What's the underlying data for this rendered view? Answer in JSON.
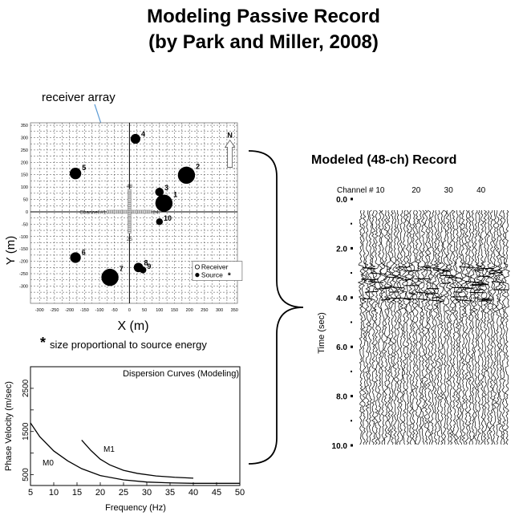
{
  "header": {
    "title_line1": "Modeling Passive Record",
    "title_line2": "(by Park and Miller, 2008)"
  },
  "map": {
    "annotation": "receiver array",
    "xlabel": "X (m)",
    "ylabel": "Y (m)",
    "north_label": "N",
    "x_ticks": [
      -300,
      -250,
      -200,
      -150,
      -100,
      -50,
      0,
      50,
      100,
      150,
      200,
      250,
      300,
      350
    ],
    "y_ticks": [
      350,
      300,
      250,
      200,
      150,
      100,
      50,
      0,
      -50,
      -100,
      -150,
      -200,
      -250,
      -300
    ],
    "channel_labels": {
      "c1": "Channel #1",
      "c24": "24",
      "c25": "25",
      "c48": "48"
    },
    "legend": {
      "receiver": "Receiver",
      "source": "Source",
      "source_mark": "*"
    },
    "footnote_mark": "*",
    "footnote": "size proportional to source energy",
    "sources": [
      {
        "label": "1",
        "x": 115,
        "y": 35,
        "size": 3
      },
      {
        "label": "2",
        "x": 190,
        "y": 148,
        "size": 3
      },
      {
        "label": "3",
        "x": 100,
        "y": 80,
        "size": 1
      },
      {
        "label": "4",
        "x": 20,
        "y": 295,
        "size": 1.3
      },
      {
        "label": "5",
        "x": -180,
        "y": 155,
        "size": 1.7
      },
      {
        "label": "6",
        "x": -180,
        "y": -185,
        "size": 1.5
      },
      {
        "label": "7",
        "x": -65,
        "y": -265,
        "size": 3
      },
      {
        "label": "8",
        "x": 30,
        "y": -225,
        "size": 1.2
      },
      {
        "label": "9",
        "x": 45,
        "y": -235,
        "size": 0.6
      },
      {
        "label": "10",
        "x": 100,
        "y": -40,
        "size": 0.6
      }
    ]
  },
  "chart_data": {
    "type": "line",
    "title": "Dispersion Curves (Modeling)",
    "xlabel": "Frequency (Hz)",
    "ylabel": "Phase Velocity (m/sec)",
    "xlim": [
      5,
      50
    ],
    "ylim": [
      250,
      3000
    ],
    "x_ticks": [
      5,
      10,
      15,
      20,
      25,
      30,
      35,
      40,
      45,
      50
    ],
    "y_ticks": [
      500,
      1500,
      2500
    ],
    "series": [
      {
        "name": "M0",
        "x": [
          5,
          7,
          10,
          13,
          16,
          20,
          25,
          30,
          35,
          40,
          45,
          50
        ],
        "values": [
          1700,
          1380,
          1050,
          820,
          640,
          480,
          380,
          330,
          310,
          300,
          300,
          300
        ]
      },
      {
        "name": "M1",
        "x": [
          16,
          18,
          20,
          22,
          25,
          28,
          32,
          36,
          40
        ],
        "values": [
          1300,
          1060,
          860,
          730,
          600,
          530,
          470,
          440,
          420
        ]
      }
    ]
  },
  "record": {
    "title": "Modeled (48-ch) Record",
    "channel_header": "Channel # 10",
    "channel_ticks": [
      "20",
      "30",
      "40"
    ],
    "ylabel": "Time (sec)",
    "time_ticks": [
      "0.0",
      "2.0",
      "4.0",
      "6.0",
      "8.0",
      "10.0"
    ]
  }
}
